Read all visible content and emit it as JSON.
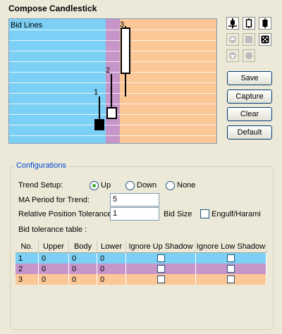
{
  "title": "Compose Candlestick",
  "canvas": {
    "label": "Bid Lines",
    "candles": [
      {
        "number": "1"
      },
      {
        "number": "2"
      },
      {
        "number": "3"
      }
    ]
  },
  "tools": [
    {
      "icon": "align-bottom-icon"
    },
    {
      "icon": "align-center-icon"
    },
    {
      "icon": "align-top-icon"
    },
    {
      "icon": "move-up-icon"
    },
    {
      "icon": "square-icon"
    },
    {
      "icon": "dice-icon"
    },
    {
      "icon": "move-down-icon"
    },
    {
      "icon": "circle-icon"
    }
  ],
  "buttons": {
    "save": "Save",
    "capture": "Capture",
    "clear": "Clear",
    "default": "Default"
  },
  "config": {
    "legend": "Configurations",
    "trend_setup_label": "Trend Setup:",
    "trend_options": [
      "Up",
      "Down",
      "None"
    ],
    "trend_selected": "Up",
    "ma_period_label": "MA Period for Trend:",
    "ma_period_value": "5",
    "rel_pos_label": "Relative Position Tolerance",
    "rel_pos_value": "1",
    "bid_size_label": "Bid Size",
    "engulf_label": "Engulf/Harami",
    "bid_table_label": "Bid tolerance table :"
  },
  "table": {
    "headers": [
      "No.",
      "Upper",
      "Body",
      "Lower",
      "Ignore Up Shadow",
      "Ignore Low Shadow"
    ],
    "rows": [
      {
        "no": "1",
        "upper": "0",
        "body": "0",
        "lower": "0",
        "color": "#7dd0f5"
      },
      {
        "no": "2",
        "upper": "0",
        "body": "0",
        "lower": "0",
        "color": "#c695c9"
      },
      {
        "no": "3",
        "upper": "0",
        "body": "0",
        "lower": "0",
        "color": "#fcc796"
      }
    ]
  }
}
